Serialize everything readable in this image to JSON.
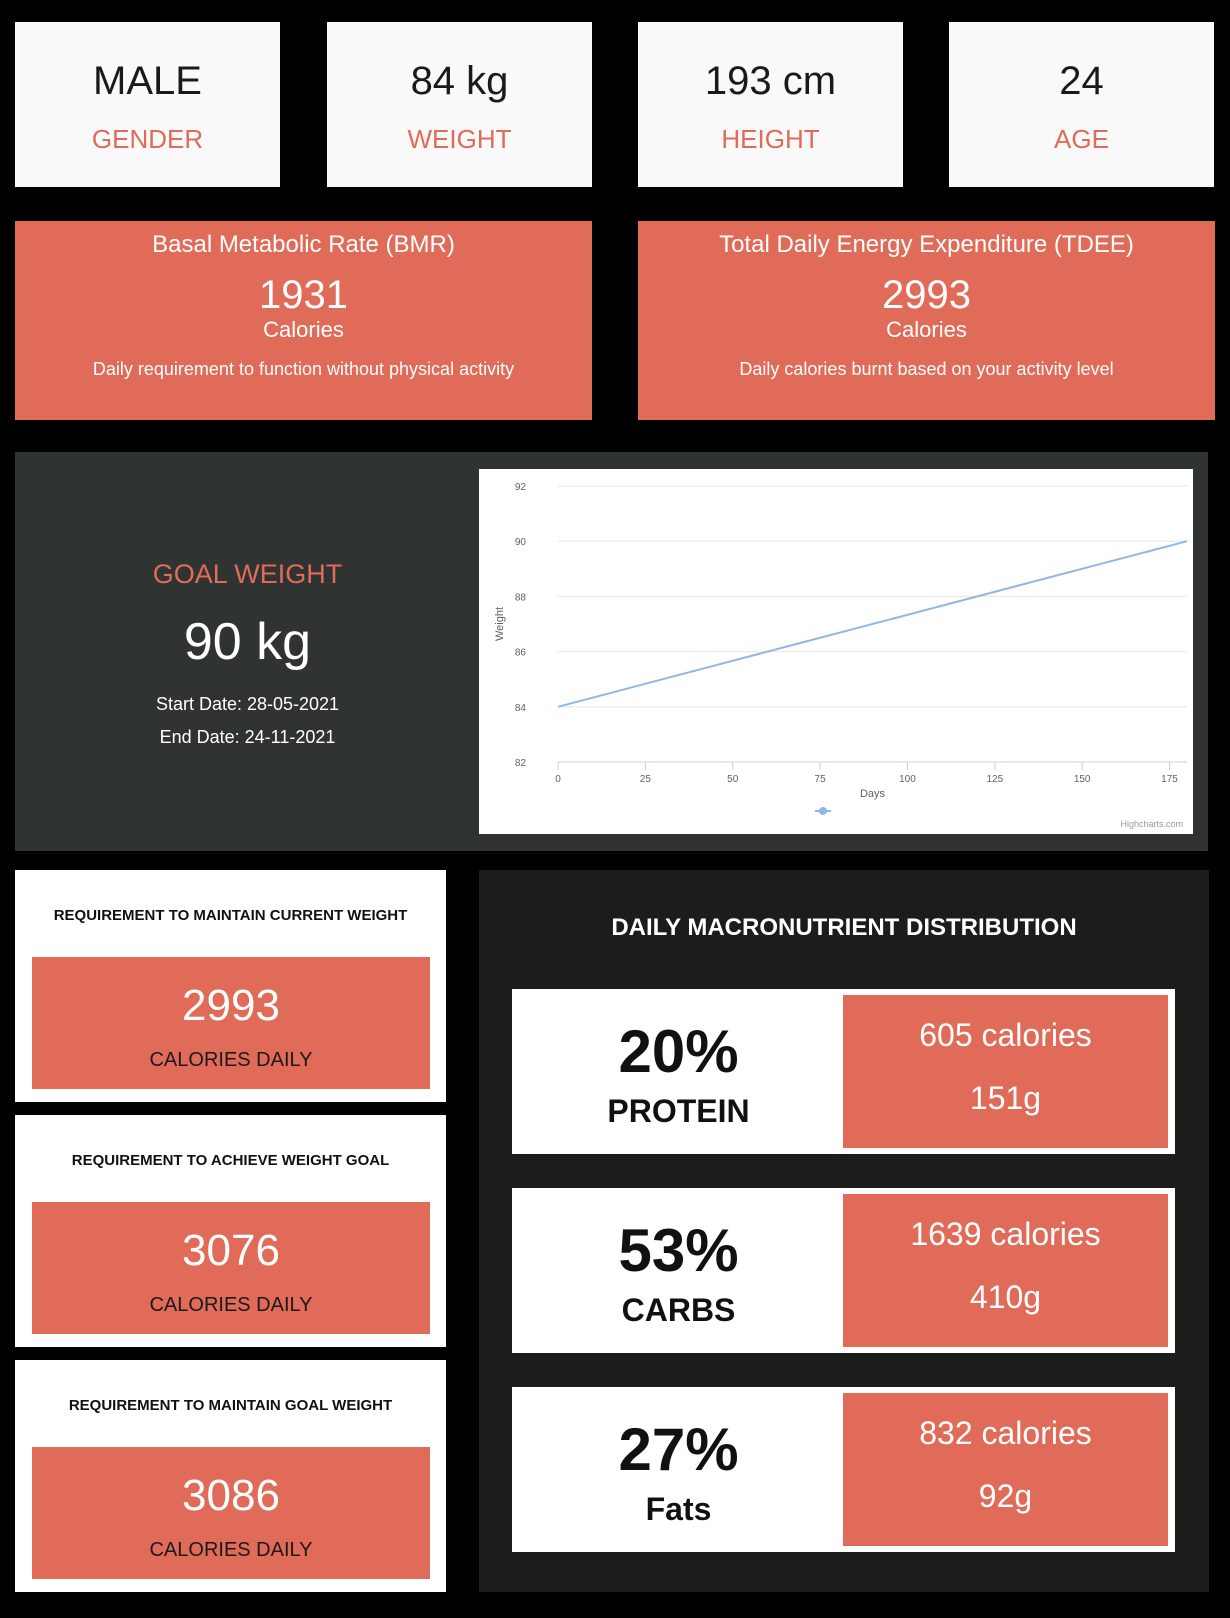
{
  "stats": [
    {
      "value": "MALE",
      "label": "GENDER"
    },
    {
      "value": "84 kg",
      "label": "WEIGHT"
    },
    {
      "value": "193 cm",
      "label": "HEIGHT"
    },
    {
      "value": "24",
      "label": "AGE"
    }
  ],
  "bmr": {
    "title": "Basal Metabolic Rate (BMR)",
    "value": "1931",
    "unit": "Calories",
    "description": "Daily requirement to function without physical activity"
  },
  "tdee": {
    "title": "Total Daily Energy Expenditure (TDEE)",
    "value": "2993",
    "unit": "Calories",
    "description": "Daily calories burnt based on your activity level"
  },
  "goal": {
    "title": "GOAL WEIGHT",
    "value": "90 kg",
    "start_date": "Start Date: 28-05-2021",
    "end_date": "End Date: 24-11-2021"
  },
  "chart_data": {
    "type": "line",
    "title": "",
    "xlabel": "Days",
    "ylabel": "Weight",
    "xlim": [
      0,
      180
    ],
    "ylim": [
      82,
      92
    ],
    "x_ticks": [
      0,
      25,
      50,
      75,
      100,
      125,
      150,
      175
    ],
    "y_ticks": [
      82,
      84,
      86,
      88,
      90,
      92
    ],
    "grid": true,
    "legend": "bottom-center",
    "credit": "Highcharts.com",
    "series": [
      {
        "x": [
          0,
          180
        ],
        "values": [
          84,
          90
        ]
      }
    ],
    "line_color": "#90b8e3"
  },
  "requirements": [
    {
      "title": "REQUIREMENT TO MAINTAIN CURRENT WEIGHT",
      "value": "2993",
      "unit": "CALORIES DAILY"
    },
    {
      "title": "REQUIREMENT TO ACHIEVE WEIGHT GOAL",
      "value": "3076",
      "unit": "CALORIES DAILY"
    },
    {
      "title": "REQUIREMENT TO MAINTAIN GOAL WEIGHT",
      "value": "3086",
      "unit": "CALORIES DAILY"
    }
  ],
  "macros": {
    "title": "DAILY MACRONUTRIENT DISTRIBUTION",
    "items": [
      {
        "percent": "20%",
        "name": "PROTEIN",
        "calories": "605 calories",
        "grams": "151g"
      },
      {
        "percent": "53%",
        "name": "CARBS",
        "calories": "1639 calories",
        "grams": "410g"
      },
      {
        "percent": "27%",
        "name": "Fats",
        "calories": "832 calories",
        "grams": "92g"
      }
    ]
  },
  "colors": {
    "accent": "#e06b58",
    "goal_panel": "#2f3432",
    "macro_panel": "#1b1d1b"
  }
}
